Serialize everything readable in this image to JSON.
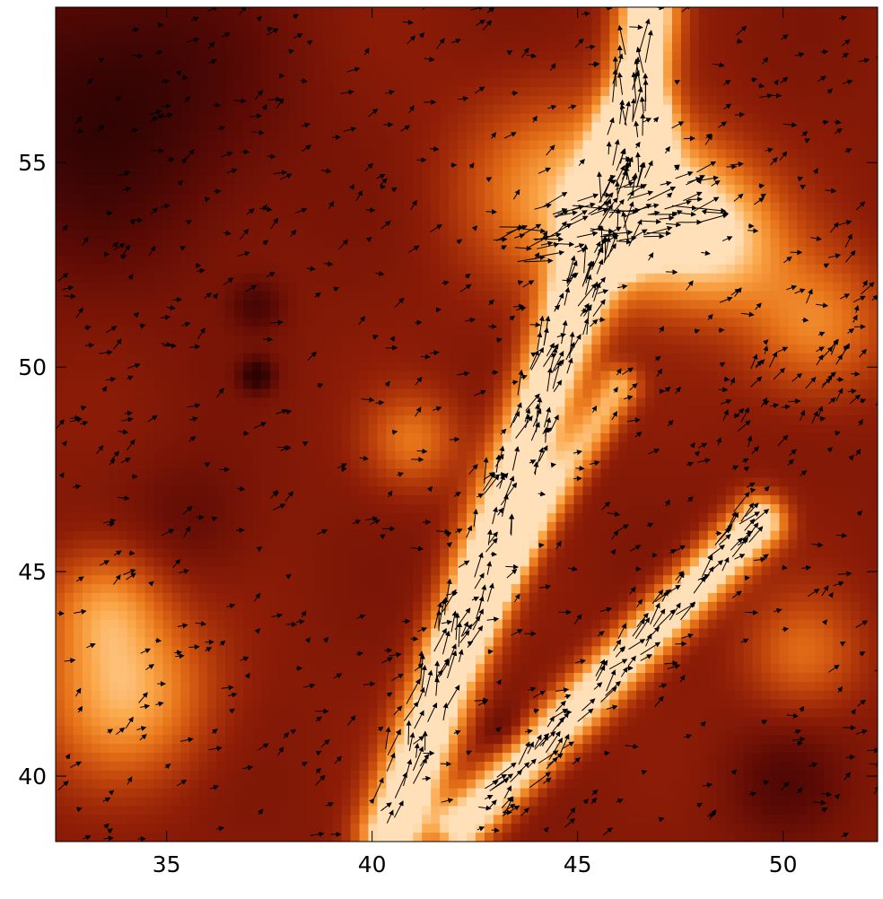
{
  "chart_data": {
    "type": "heatmap",
    "overlay": "vector-field",
    "title": "",
    "xlabel": "",
    "ylabel": "",
    "xlim": [
      32.3,
      52.3
    ],
    "ylim": [
      38.4,
      58.8
    ],
    "x_ticks": [
      35,
      40,
      45,
      50
    ],
    "x_tick_labels": [
      "35",
      "40",
      "45",
      "50"
    ],
    "y_ticks": [
      40,
      45,
      50,
      55
    ],
    "y_tick_labels": [
      "40",
      "45",
      "50",
      "55"
    ],
    "grid": false,
    "legend": "none",
    "colormap": [
      "#2a0303",
      "#5c0a05",
      "#8e1d07",
      "#c0440c",
      "#e8751a",
      "#fba84a",
      "#ffe0b8"
    ],
    "intensity_features": [
      {
        "shape": "ridge",
        "from": [
          40.5,
          38.6
        ],
        "to": [
          46.4,
          55.8
        ],
        "width": 1.1,
        "peak": 1.0
      },
      {
        "shape": "ridge",
        "from": [
          46.1,
          53.2
        ],
        "to": [
          46.7,
          58.6
        ],
        "width": 1.0,
        "peak": 0.95
      },
      {
        "shape": "ridge",
        "from": [
          42.2,
          38.8
        ],
        "to": [
          49.4,
          46.2
        ],
        "width": 0.9,
        "peak": 0.9
      },
      {
        "shape": "ridge",
        "from": [
          42.0,
          43.0
        ],
        "to": [
          46.0,
          49.5
        ],
        "width": 0.7,
        "peak": 0.55
      },
      {
        "shape": "blob",
        "center": [
          47.0,
          53.8
        ],
        "radius": 2.6,
        "peak": 0.78
      },
      {
        "shape": "blob",
        "center": [
          44.5,
          54.3
        ],
        "radius": 3.2,
        "peak": 0.45
      },
      {
        "shape": "blob",
        "center": [
          48.6,
          53.0
        ],
        "radius": 2.3,
        "peak": 0.45
      },
      {
        "shape": "blob",
        "center": [
          50.8,
          51.0
        ],
        "radius": 2.4,
        "peak": 0.42
      },
      {
        "shape": "blob",
        "center": [
          34.0,
          42.0
        ],
        "radius": 2.8,
        "peak": 0.55
      },
      {
        "shape": "blob",
        "center": [
          33.5,
          44.2
        ],
        "radius": 2.0,
        "peak": 0.4
      },
      {
        "shape": "blob",
        "center": [
          41.0,
          48.2
        ],
        "radius": 1.6,
        "peak": 0.35
      },
      {
        "shape": "blob",
        "center": [
          50.5,
          43.0
        ],
        "radius": 2.0,
        "peak": 0.32
      },
      {
        "shape": "blob",
        "center": [
          33.5,
          56.5
        ],
        "radius": 5.5,
        "peak": -0.28
      },
      {
        "shape": "blob",
        "center": [
          37.2,
          49.8
        ],
        "radius": 0.6,
        "peak": -0.3
      },
      {
        "shape": "blob",
        "center": [
          37.2,
          51.5
        ],
        "radius": 0.9,
        "peak": -0.18
      },
      {
        "shape": "blob",
        "center": [
          35.6,
          46.2
        ],
        "radius": 2.2,
        "peak": -0.12
      },
      {
        "shape": "blob",
        "center": [
          43.3,
          41.0
        ],
        "radius": 0.9,
        "peak": -0.15
      },
      {
        "shape": "blob",
        "center": [
          50.0,
          39.8
        ],
        "radius": 2.0,
        "peak": -0.15
      }
    ],
    "vector_flows": [
      {
        "from": [
          40.2,
          38.8
        ],
        "to": [
          46.3,
          55.2
        ],
        "spread": 0.55,
        "count": 150,
        "length": 0.5
      },
      {
        "from": [
          42.8,
          39.2
        ],
        "to": [
          49.3,
          46.4
        ],
        "spread": 0.45,
        "count": 90,
        "length": 0.45
      },
      {
        "from": [
          43.0,
          53.0
        ],
        "to": [
          48.2,
          54.2
        ],
        "spread": 0.7,
        "count": 70,
        "length": 0.55
      },
      {
        "from": [
          45.7,
          52.0
        ],
        "to": [
          46.4,
          57.8
        ],
        "spread": 0.45,
        "count": 45,
        "length": 0.6
      },
      {
        "from": [
          48.8,
          47.5
        ],
        "to": [
          52.2,
          52.5
        ],
        "spread": 1.3,
        "count": 45,
        "length": 0.3
      }
    ],
    "background_vector_count": 750,
    "background_vector_length": 0.25,
    "background_vector_direction_deg": 25
  }
}
